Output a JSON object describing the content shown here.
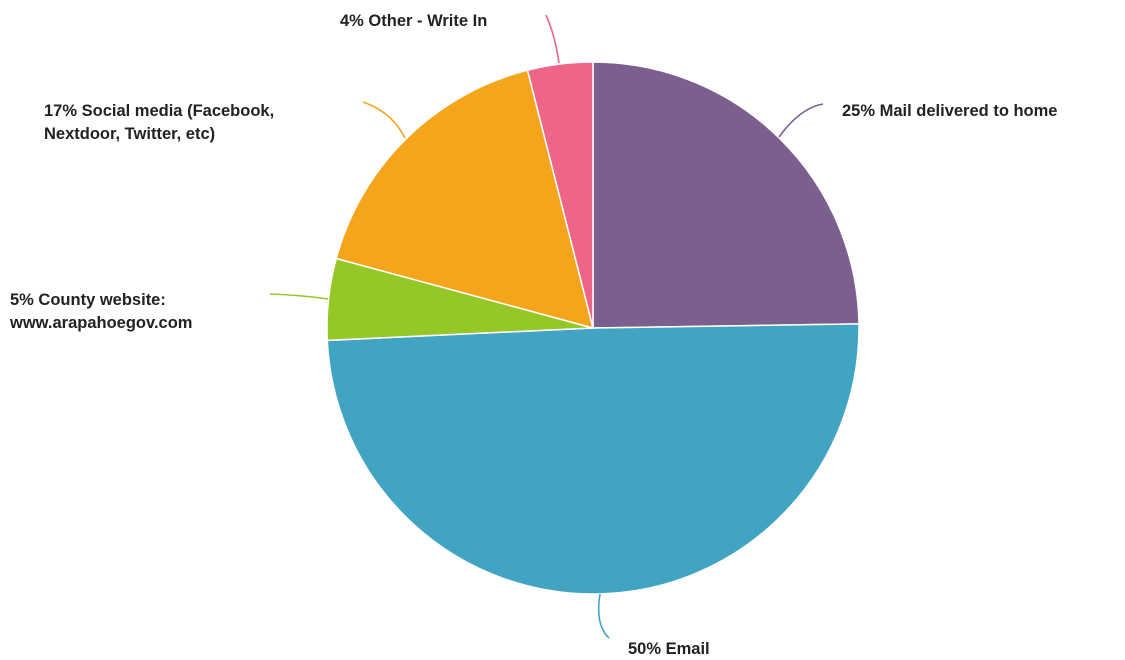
{
  "chart_data": {
    "type": "pie",
    "title": "",
    "start_angle_deg": 0,
    "direction": "clockwise",
    "slices": [
      {
        "name": "Mail delivered to home",
        "value": 25,
        "label_lines": [
          "25% Mail delivered to home"
        ],
        "color": "#7b5f8e"
      },
      {
        "name": "Email",
        "value": 50,
        "label_lines": [
          "50% Email"
        ],
        "color": "#41a4c3"
      },
      {
        "name": "County website: www.arapahoegov.com",
        "value": 5,
        "label_lines": [
          "5% County website:",
          "www.arapahoegov.com"
        ],
        "color": "#95c727"
      },
      {
        "name": "Social media (Facebook, Nextdoor, Twitter, etc)",
        "value": 17,
        "label_lines": [
          "17% Social media (Facebook,",
          "Nextdoor, Twitter, etc)"
        ],
        "color": "#f4a51c"
      },
      {
        "name": "Other - Write In",
        "value": 4,
        "label_lines": [
          "4% Other - Write In"
        ],
        "color": "#ef6588"
      }
    ]
  }
}
